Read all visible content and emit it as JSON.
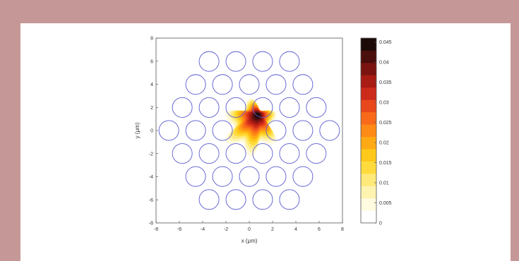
{
  "chart_data": {
    "type": "heatmap",
    "title": "",
    "xlabel": "x (μm)",
    "ylabel": "y (μm)",
    "xlim": [
      -8,
      8
    ],
    "ylim": [
      -8,
      8
    ],
    "x_ticks": [
      -8,
      -6,
      -4,
      -2,
      0,
      2,
      4,
      6,
      8
    ],
    "y_ticks": [
      -8,
      -6,
      -4,
      -2,
      0,
      2,
      4,
      6,
      8
    ],
    "grid": false,
    "air_hole_lattice": {
      "pitch": 2.3,
      "hole_radius": 0.85,
      "rings": 3,
      "missing_center": true,
      "hole_color": "#5a5ad0"
    },
    "mode_field": {
      "peak_value": 0.046,
      "peak_x": 0.7,
      "peak_y": 1.3,
      "core_center": [
        0,
        0
      ]
    },
    "colorbar": {
      "ticks": [
        "0.045",
        "0.04",
        "0.035",
        "0.03",
        "0.025",
        "0.02",
        "0.015",
        "0.01",
        "0.005",
        "0"
      ],
      "tick_values": [
        0.045,
        0.04,
        0.035,
        0.03,
        0.025,
        0.02,
        0.015,
        0.01,
        0.005,
        0
      ],
      "max": 0.046,
      "levels": [
        "#ffffff",
        "#fffbe0",
        "#fff3b0",
        "#ffe97a",
        "#ffdb3d",
        "#ffc81a",
        "#ffaa14",
        "#ff8a16",
        "#f86a1a",
        "#e8481c",
        "#cc2a1a",
        "#a81c14",
        "#7a1410",
        "#4a0e0c",
        "#1c0a08"
      ]
    }
  }
}
